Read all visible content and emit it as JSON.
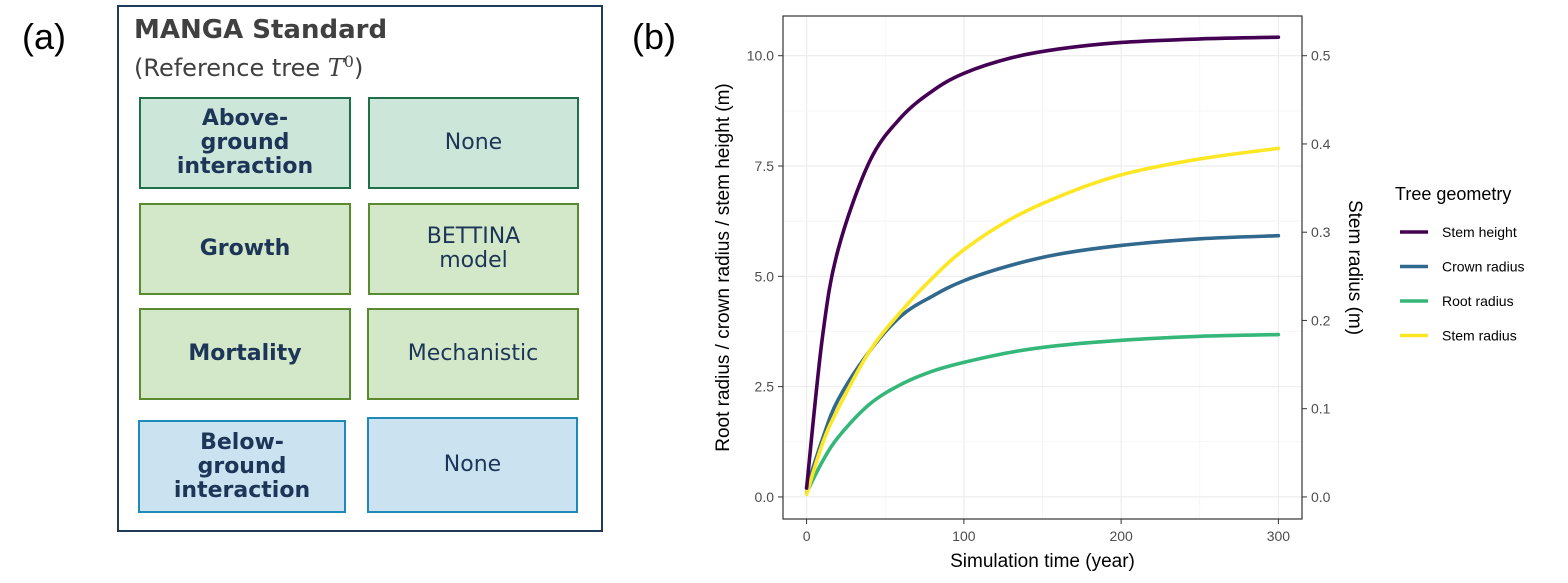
{
  "panel_a": {
    "letter": "(a)",
    "title": "MANGA Standard",
    "subtitle_prefix": "(Reference tree ",
    "subtitle_var": "T",
    "subtitle_sup": "0",
    "subtitle_suffix": ")",
    "rows": [
      {
        "label": "Above-\nground\ninteraction",
        "value": "None",
        "color": "teal"
      },
      {
        "label": "Growth",
        "value": "BETTINA\nmodel",
        "color": "green"
      },
      {
        "label": "Mortality",
        "value": "Mechanistic",
        "color": "green"
      },
      {
        "label": "Below-\nground\ninteraction",
        "value": "None",
        "color": "blue"
      }
    ]
  },
  "panel_b": {
    "letter": "(b)"
  },
  "chart_data": {
    "type": "line",
    "title": "",
    "xlabel": "Simulation time (year)",
    "ylabel": "Root radius / crown radius / stem height (m)",
    "y2label": "Stem radius (m)",
    "xlim": [
      -15,
      315
    ],
    "ylim": [
      -0.5,
      10.9
    ],
    "y2lim": [
      -0.025,
      0.545
    ],
    "x_ticks": [
      0,
      100,
      200,
      300
    ],
    "y_ticks": [
      "0.0",
      "2.5",
      "5.0",
      "7.5",
      "10.0"
    ],
    "y2_ticks": [
      "0.0",
      "0.1",
      "0.2",
      "0.3",
      "0.4",
      "0.5"
    ],
    "grid": true,
    "legend_title": "Tree geometry",
    "legend_position": "right",
    "x": [
      0,
      10,
      20,
      40,
      60,
      80,
      100,
      130,
      160,
      200,
      250,
      300
    ],
    "series": [
      {
        "name": "Stem height",
        "axis": "left",
        "color": "#440154",
        "values": [
          0.2,
          3.6,
          5.6,
          7.6,
          8.6,
          9.2,
          9.6,
          9.95,
          10.15,
          10.3,
          10.38,
          10.42
        ]
      },
      {
        "name": "Crown radius",
        "axis": "left",
        "color": "#31688e",
        "values": [
          0.2,
          1.3,
          2.2,
          3.3,
          4.1,
          4.55,
          4.9,
          5.25,
          5.5,
          5.7,
          5.85,
          5.92
        ]
      },
      {
        "name": "Root radius",
        "axis": "left",
        "color": "#35b779",
        "values": [
          0.1,
          0.8,
          1.35,
          2.1,
          2.55,
          2.85,
          3.05,
          3.28,
          3.43,
          3.55,
          3.64,
          3.68
        ]
      },
      {
        "name": "Stem radius",
        "axis": "right",
        "color": "#fde725",
        "values": [
          0.003,
          0.06,
          0.1,
          0.165,
          0.21,
          0.248,
          0.28,
          0.315,
          0.34,
          0.365,
          0.383,
          0.395
        ]
      }
    ]
  }
}
